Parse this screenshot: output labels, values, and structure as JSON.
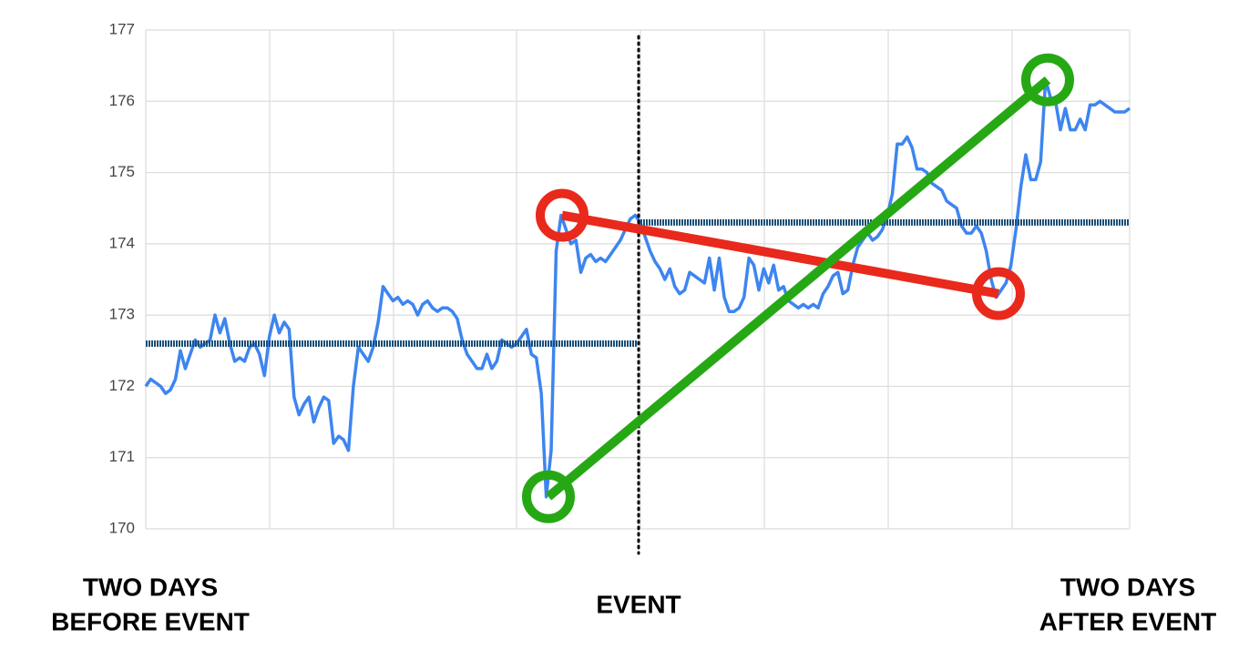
{
  "chart_data": {
    "type": "line",
    "ylim": [
      170,
      177
    ],
    "yticks": [
      170,
      171,
      172,
      173,
      174,
      175,
      176,
      177
    ],
    "grid": true,
    "series": [
      {
        "color": "#3d85f0",
        "values": [
          172.0,
          172.1,
          172.05,
          172.0,
          171.9,
          171.95,
          172.1,
          172.5,
          172.25,
          172.45,
          172.65,
          172.55,
          172.6,
          172.65,
          173.0,
          172.75,
          172.95,
          172.6,
          172.35,
          172.4,
          172.35,
          172.55,
          172.6,
          172.45,
          172.15,
          172.7,
          173.0,
          172.75,
          172.9,
          172.8,
          171.85,
          171.6,
          171.75,
          171.85,
          171.5,
          171.7,
          171.85,
          171.8,
          171.2,
          171.3,
          171.25,
          171.1,
          172.0,
          172.55,
          172.45,
          172.35,
          172.55,
          172.9,
          173.4,
          173.3,
          173.2,
          173.25,
          173.15,
          173.2,
          173.15,
          173.0,
          173.15,
          173.2,
          173.1,
          173.05,
          173.1,
          173.1,
          173.05,
          172.95,
          172.65,
          172.45,
          172.35,
          172.25,
          172.25,
          172.45,
          172.25,
          172.35,
          172.65,
          172.6,
          172.55,
          172.6,
          172.7,
          172.8,
          172.45,
          172.4,
          171.9,
          170.45,
          171.1,
          173.9,
          174.4,
          174.2,
          174.0,
          174.05,
          173.6,
          173.8,
          173.85,
          173.75,
          173.8,
          173.75,
          173.85,
          173.95,
          174.05,
          174.2,
          174.35,
          174.4,
          174.3,
          174.1,
          173.9,
          173.75,
          173.65,
          173.5,
          173.65,
          173.4,
          173.3,
          173.35,
          173.6,
          173.55,
          173.5,
          173.45,
          173.8,
          173.35,
          173.8,
          173.25,
          173.05,
          173.05,
          173.1,
          173.25,
          173.8,
          173.7,
          173.35,
          173.65,
          173.45,
          173.7,
          173.35,
          173.4,
          173.2,
          173.15,
          173.1,
          173.15,
          173.1,
          173.15,
          173.1,
          173.3,
          173.4,
          173.55,
          173.6,
          173.3,
          173.35,
          173.7,
          173.95,
          174.05,
          174.15,
          174.05,
          174.1,
          174.2,
          174.4,
          174.7,
          175.4,
          175.4,
          175.5,
          175.35,
          175.05,
          175.05,
          175.0,
          174.85,
          174.8,
          174.75,
          174.6,
          174.55,
          174.5,
          174.25,
          174.15,
          174.15,
          174.25,
          174.15,
          173.9,
          173.5,
          173.25,
          173.35,
          173.45,
          173.7,
          174.2,
          174.8,
          175.25,
          174.9,
          174.9,
          175.15,
          176.3,
          176.05,
          176.0,
          175.6,
          175.9,
          175.6,
          175.6,
          175.75,
          175.6,
          175.95,
          175.95,
          176.0,
          175.95,
          175.9,
          175.85,
          175.85,
          175.85,
          175.9
        ]
      }
    ],
    "mean_lines": [
      {
        "value": 172.6,
        "color": "#1b4f77"
      },
      {
        "value": 174.3,
        "color": "#1b4f77"
      }
    ],
    "connectors": [
      {
        "color": "#e8291c",
        "values": [
          174.4,
          173.3
        ]
      },
      {
        "color": "#26a815",
        "values": [
          170.45,
          176.3
        ]
      }
    ],
    "labels": {
      "before": [
        "TWO DAYS",
        "BEFORE EVENT"
      ],
      "event": "EVENT",
      "after": [
        "TWO DAYS",
        "AFTER EVENT"
      ]
    }
  }
}
